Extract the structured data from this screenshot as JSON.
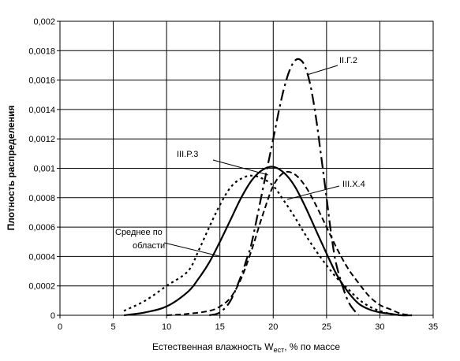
{
  "chart_data": {
    "type": "line",
    "xlabel": "Естественная влажность W",
    "xlabel_sub": "ест",
    "xlabel_tail": ", % по массе",
    "ylabel": "Плотность распределения",
    "xlim": [
      0,
      35
    ],
    "ylim": [
      0,
      0.002
    ],
    "x_ticks": [
      0,
      5,
      10,
      15,
      20,
      25,
      30,
      35
    ],
    "x_tick_labels": [
      "0",
      "5",
      "10",
      "15",
      "20",
      "25",
      "30",
      "35"
    ],
    "y_ticks": [
      0,
      0.0002,
      0.0004,
      0.0006,
      0.0008,
      0.001,
      0.0012,
      0.0014,
      0.0016,
      0.0018,
      0.002
    ],
    "y_tick_labels": [
      "0",
      "0,0002",
      "0,0004",
      "0,0006",
      "0,0008",
      "0,001",
      "0,0012",
      "0,0014",
      "0,0016",
      "0,0018",
      "0,002"
    ],
    "grid": "horizontal",
    "legend": "none",
    "series": [
      {
        "name": "Среднее по области",
        "style": "solid",
        "color": "#000000",
        "x": [
          6,
          8,
          10,
          12,
          13,
          14,
          15,
          16,
          17,
          18,
          19,
          20,
          21,
          22,
          23,
          24,
          25,
          26,
          27,
          28,
          29,
          30,
          31,
          32,
          33
        ],
        "y": [
          0.0,
          2e-05,
          6e-05,
          0.00016,
          0.00025,
          0.00036,
          0.0005,
          0.00065,
          0.0008,
          0.00092,
          0.00099,
          0.00101,
          0.00097,
          0.00088,
          0.00074,
          0.00058,
          0.00042,
          0.00027,
          0.00016,
          8e-05,
          4e-05,
          2e-05,
          1e-05,
          0.0,
          0.0
        ]
      },
      {
        "name": "III.P.3",
        "style": "dotted",
        "color": "#000000",
        "x": [
          6,
          8,
          10,
          12,
          13,
          14,
          15,
          16,
          17,
          18,
          19,
          20,
          21,
          22,
          23,
          24,
          25,
          26,
          27,
          28,
          29,
          30,
          31,
          32
        ],
        "y": [
          3e-05,
          0.0001,
          0.0002,
          0.0003,
          0.00044,
          0.0006,
          0.00075,
          0.00087,
          0.00093,
          0.00095,
          0.00093,
          0.00088,
          0.00078,
          0.00067,
          0.00055,
          0.00044,
          0.00034,
          0.00025,
          0.00018,
          0.00011,
          6e-05,
          3e-05,
          1e-05,
          0.0
        ]
      },
      {
        "name": "III.X.4",
        "style": "dashed",
        "color": "#000000",
        "x": [
          10,
          12,
          14,
          15,
          16,
          17,
          18,
          19,
          20,
          21,
          22,
          23,
          24,
          25,
          26,
          27,
          28,
          29,
          30,
          31,
          32,
          33
        ],
        "y": [
          0.0,
          1e-05,
          3e-05,
          6e-05,
          0.00012,
          0.00025,
          0.00045,
          0.00068,
          0.00088,
          0.00097,
          0.00096,
          0.00088,
          0.00075,
          0.0006,
          0.00045,
          0.00032,
          0.00022,
          0.00013,
          7e-05,
          4e-05,
          1e-05,
          0.0
        ]
      },
      {
        "name": "II.Г.2",
        "style": "dash-dot",
        "color": "#000000",
        "x": [
          14,
          15,
          16,
          17,
          17.5,
          18,
          19,
          20,
          20.5,
          21,
          21.5,
          22,
          22.5,
          23,
          23.5,
          24,
          24.5,
          25,
          25.5,
          26,
          27,
          28
        ],
        "y": [
          0.0,
          2e-05,
          0.0001,
          0.00027,
          0.00038,
          0.0005,
          0.00085,
          0.0012,
          0.00138,
          0.00154,
          0.00166,
          0.00173,
          0.00174,
          0.00169,
          0.00156,
          0.00135,
          0.00108,
          0.0008,
          0.00052,
          0.00032,
          0.0001,
          0.0
        ]
      }
    ],
    "annotations": [
      {
        "text": "II.Г.2"
      },
      {
        "text": "III.P.3"
      },
      {
        "text": "III.X.4"
      },
      {
        "text": "Среднее по"
      },
      {
        "text": "области"
      }
    ]
  }
}
